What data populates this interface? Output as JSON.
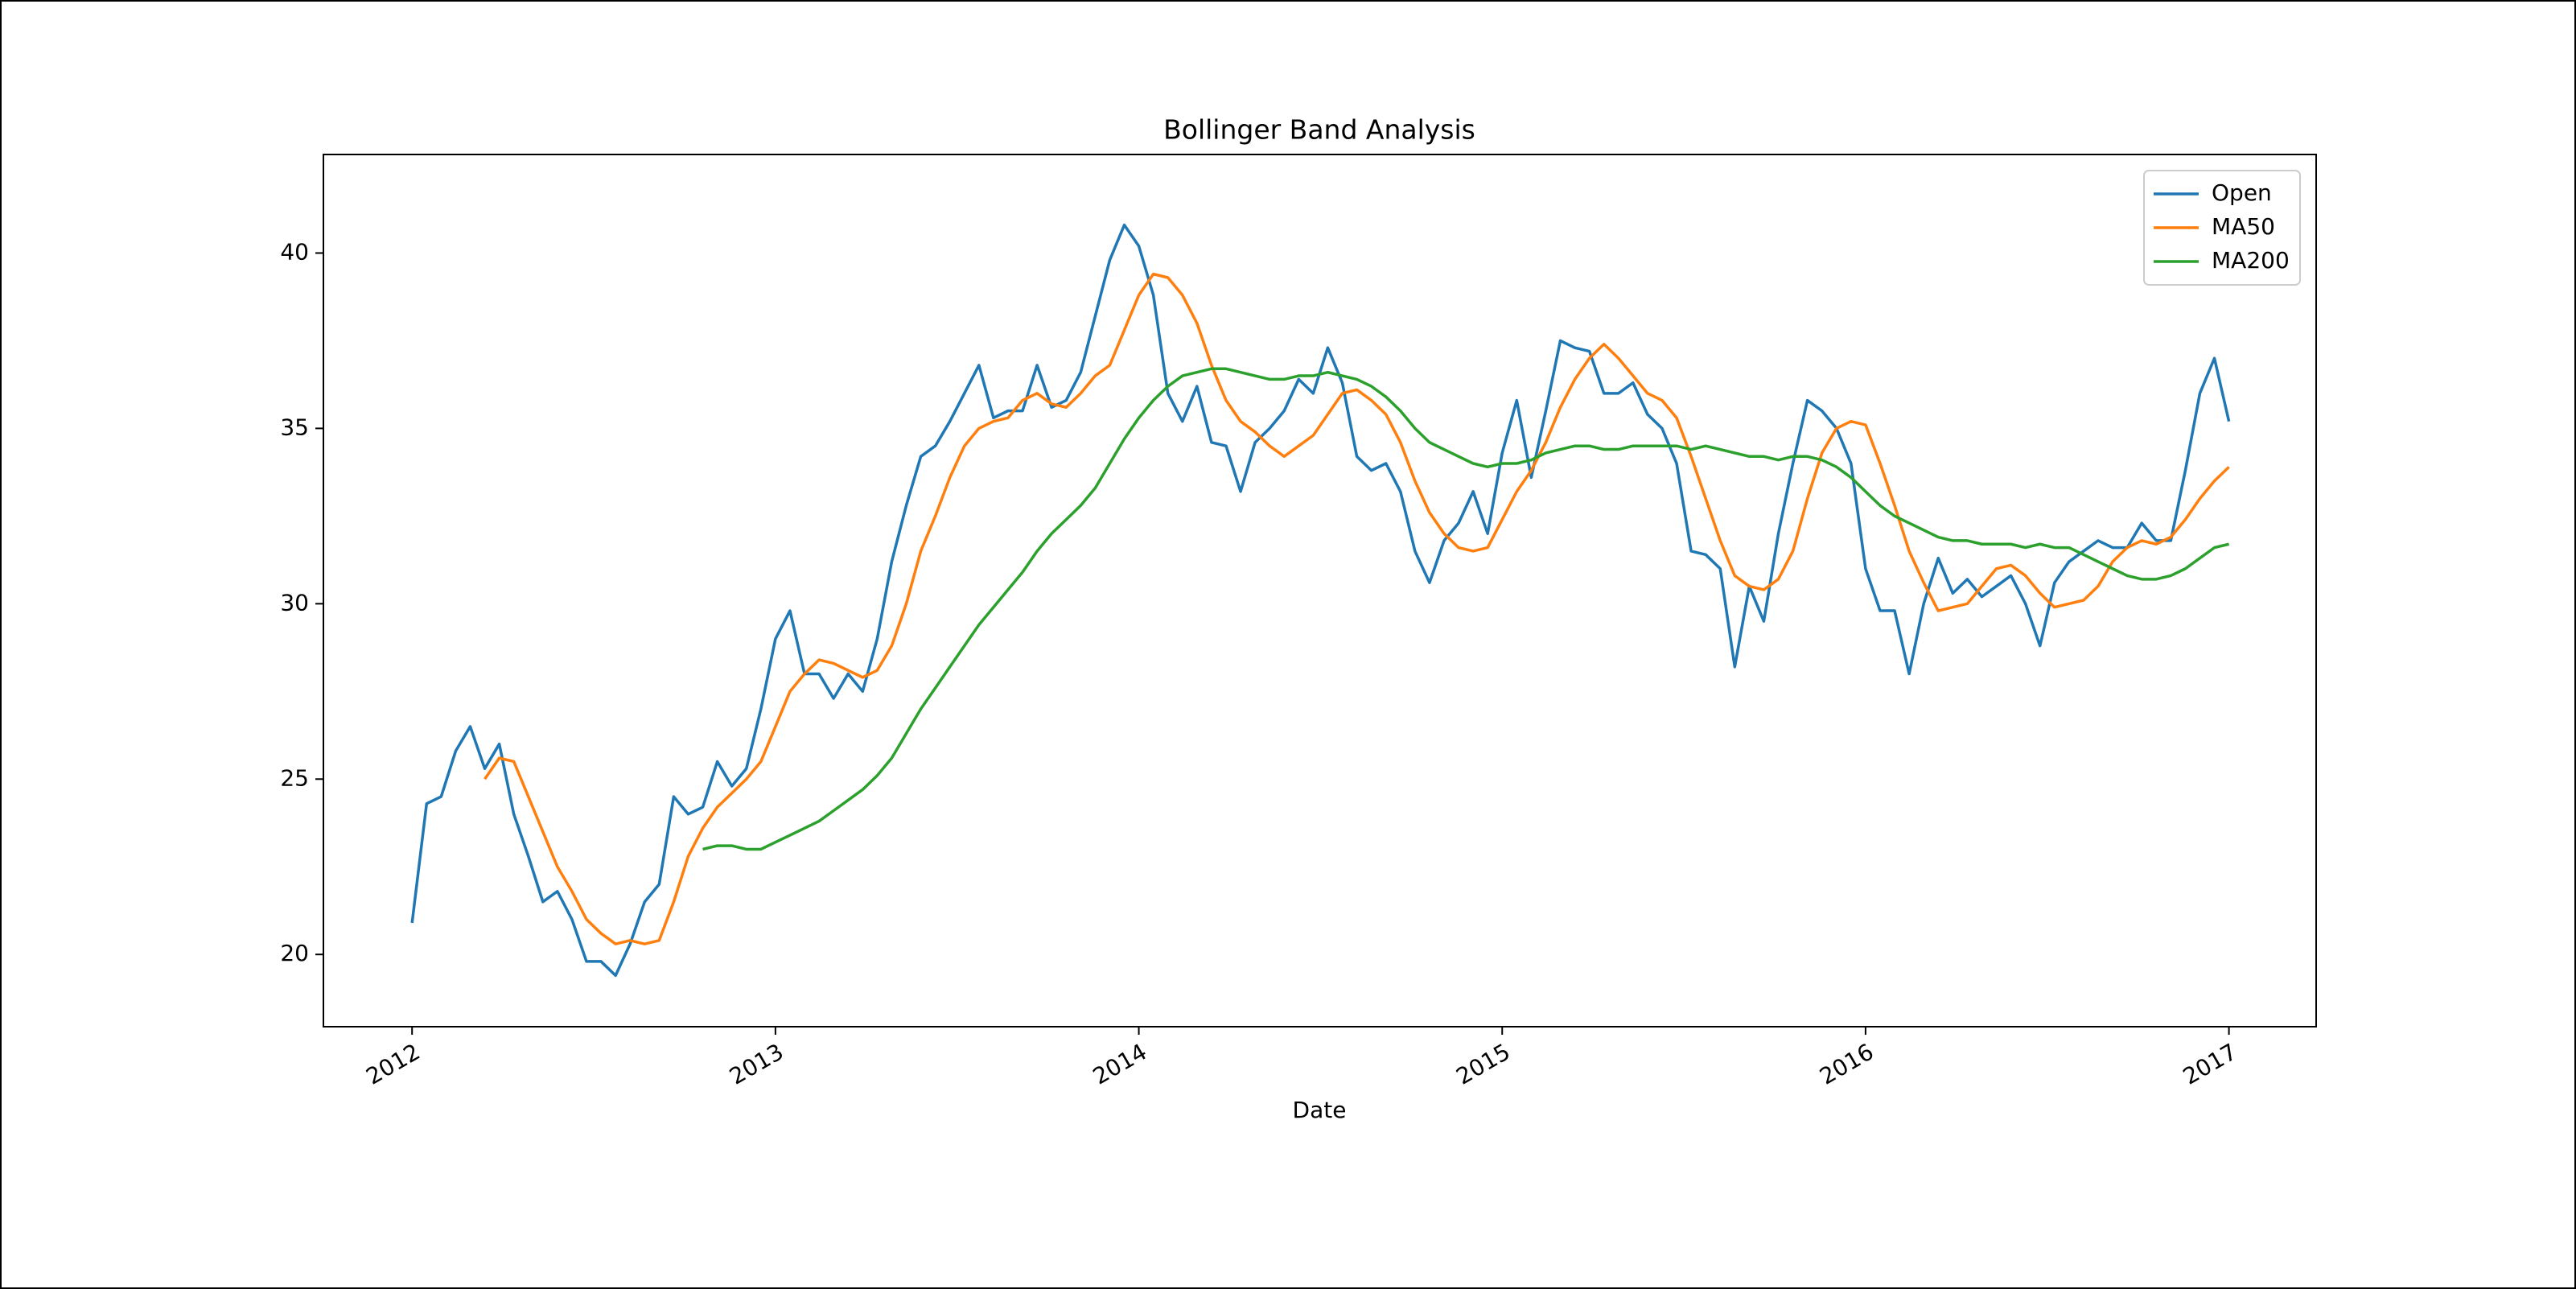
{
  "chart_data": {
    "type": "line",
    "title": "Bollinger Band Analysis",
    "x_label": "Date",
    "x": [
      2012,
      2012.04,
      2012.08,
      2012.12,
      2012.16,
      2012.2,
      2012.24,
      2012.28,
      2012.32,
      2012.36,
      2012.4,
      2012.44,
      2012.48,
      2012.52,
      2012.56,
      2012.6,
      2012.64,
      2012.68,
      2012.72,
      2012.76,
      2012.8,
      2012.84,
      2012.88,
      2012.92,
      2012.96,
      2013,
      2013.04,
      2013.08,
      2013.12,
      2013.16,
      2013.2,
      2013.24,
      2013.28,
      2013.32,
      2013.36,
      2013.4,
      2013.44,
      2013.48,
      2013.52,
      2013.56,
      2013.6,
      2013.64,
      2013.68,
      2013.72,
      2013.76,
      2013.8,
      2013.84,
      2013.88,
      2013.92,
      2013.96,
      2014,
      2014.04,
      2014.08,
      2014.12,
      2014.16,
      2014.2,
      2014.24,
      2014.28,
      2014.32,
      2014.36,
      2014.4,
      2014.44,
      2014.48,
      2014.52,
      2014.56,
      2014.6,
      2014.64,
      2014.68,
      2014.72,
      2014.76,
      2014.8,
      2014.84,
      2014.88,
      2014.92,
      2014.96,
      2015,
      2015.04,
      2015.08,
      2015.12,
      2015.16,
      2015.2,
      2015.24,
      2015.28,
      2015.32,
      2015.36,
      2015.4,
      2015.44,
      2015.48,
      2015.52,
      2015.56,
      2015.6,
      2015.64,
      2015.68,
      2015.72,
      2015.76,
      2015.8,
      2015.84,
      2015.88,
      2015.92,
      2015.96,
      2016,
      2016.04,
      2016.08,
      2016.12,
      2016.16,
      2016.2,
      2016.24,
      2016.28,
      2016.32,
      2016.36,
      2016.4,
      2016.44,
      2016.48,
      2016.52,
      2016.56,
      2016.6,
      2016.64,
      2016.68,
      2016.72,
      2016.76,
      2016.8,
      2016.84,
      2016.88,
      2016.92,
      2016.96,
      2017
    ],
    "series": [
      {
        "name": "Open",
        "color": "#1f77b4",
        "values": [
          20.9,
          24.3,
          24.5,
          25.8,
          26.5,
          25.3,
          26.0,
          24.0,
          22.8,
          21.5,
          21.8,
          21.0,
          19.8,
          19.8,
          19.4,
          20.3,
          21.5,
          22.0,
          24.5,
          24.0,
          24.2,
          25.5,
          24.8,
          25.3,
          27.0,
          29.0,
          29.8,
          28.0,
          28.0,
          27.3,
          28.0,
          27.5,
          29.0,
          31.2,
          32.8,
          34.2,
          34.5,
          35.2,
          36.0,
          36.8,
          35.3,
          35.5,
          35.5,
          36.8,
          35.6,
          35.8,
          36.6,
          38.2,
          39.8,
          40.8,
          40.2,
          38.8,
          36.0,
          35.2,
          36.2,
          34.6,
          34.5,
          33.2,
          34.6,
          35.0,
          35.5,
          36.4,
          36.0,
          37.3,
          36.3,
          34.2,
          33.8,
          34.0,
          33.2,
          31.5,
          30.6,
          31.8,
          32.3,
          33.2,
          32.0,
          34.3,
          35.8,
          33.6,
          35.5,
          37.5,
          37.3,
          37.2,
          36.0,
          36.0,
          36.3,
          35.4,
          35.0,
          34.0,
          31.5,
          31.4,
          31.0,
          28.2,
          30.5,
          29.5,
          32.0,
          34.0,
          35.8,
          35.5,
          35.0,
          34.0,
          31.0,
          29.8,
          29.8,
          28.0,
          30.0,
          31.3,
          30.3,
          30.7,
          30.2,
          30.5,
          30.8,
          30.0,
          28.8,
          30.6,
          31.2,
          31.5,
          31.8,
          31.6,
          31.6,
          32.3,
          31.8,
          31.8,
          33.8,
          36.0,
          37.0,
          35.2
        ]
      },
      {
        "name": "MA50",
        "color": "#ff7f0e",
        "values": [
          null,
          null,
          null,
          null,
          null,
          25.0,
          25.6,
          25.5,
          24.5,
          23.5,
          22.5,
          21.8,
          21.0,
          20.6,
          20.3,
          20.4,
          20.3,
          20.4,
          21.5,
          22.8,
          23.6,
          24.2,
          24.6,
          25.0,
          25.5,
          26.5,
          27.5,
          28.0,
          28.4,
          28.3,
          28.1,
          27.9,
          28.1,
          28.8,
          30.0,
          31.5,
          32.5,
          33.6,
          34.5,
          35.0,
          35.2,
          35.3,
          35.8,
          36.0,
          35.7,
          35.6,
          36.0,
          36.5,
          36.8,
          37.8,
          38.8,
          39.4,
          39.3,
          38.8,
          38.0,
          36.8,
          35.8,
          35.2,
          34.9,
          34.5,
          34.2,
          34.5,
          34.8,
          35.4,
          36.0,
          36.1,
          35.8,
          35.4,
          34.6,
          33.5,
          32.6,
          32.0,
          31.6,
          31.5,
          31.6,
          32.4,
          33.2,
          33.8,
          34.6,
          35.6,
          36.4,
          37.0,
          37.4,
          37.0,
          36.5,
          36.0,
          35.8,
          35.3,
          34.2,
          33.0,
          31.8,
          30.8,
          30.5,
          30.4,
          30.7,
          31.5,
          33.0,
          34.3,
          35.0,
          35.2,
          35.1,
          34.0,
          32.8,
          31.5,
          30.6,
          29.8,
          29.9,
          30.0,
          30.5,
          31.0,
          31.1,
          30.8,
          30.3,
          29.9,
          30.0,
          30.1,
          30.5,
          31.2,
          31.6,
          31.8,
          31.7,
          31.9,
          32.4,
          33.0,
          33.5,
          33.9
        ]
      },
      {
        "name": "MA200",
        "color": "#2ca02c",
        "values": [
          null,
          null,
          null,
          null,
          null,
          null,
          null,
          null,
          null,
          null,
          null,
          null,
          null,
          null,
          null,
          null,
          null,
          null,
          null,
          null,
          23.0,
          23.1,
          23.1,
          23.0,
          23.0,
          23.2,
          23.4,
          23.6,
          23.8,
          24.1,
          24.4,
          24.7,
          25.1,
          25.6,
          26.3,
          27.0,
          27.6,
          28.2,
          28.8,
          29.4,
          29.9,
          30.4,
          30.9,
          31.5,
          32.0,
          32.4,
          32.8,
          33.3,
          34.0,
          34.7,
          35.3,
          35.8,
          36.2,
          36.5,
          36.6,
          36.7,
          36.7,
          36.6,
          36.5,
          36.4,
          36.4,
          36.5,
          36.5,
          36.6,
          36.5,
          36.4,
          36.2,
          35.9,
          35.5,
          35.0,
          34.6,
          34.4,
          34.2,
          34.0,
          33.9,
          34.0,
          34.0,
          34.1,
          34.3,
          34.4,
          34.5,
          34.5,
          34.4,
          34.4,
          34.5,
          34.5,
          34.5,
          34.5,
          34.4,
          34.5,
          34.4,
          34.3,
          34.2,
          34.2,
          34.1,
          34.2,
          34.2,
          34.1,
          33.9,
          33.6,
          33.2,
          32.8,
          32.5,
          32.3,
          32.1,
          31.9,
          31.8,
          31.8,
          31.7,
          31.7,
          31.7,
          31.6,
          31.7,
          31.6,
          31.6,
          31.4,
          31.2,
          31.0,
          30.8,
          30.7,
          30.7,
          30.8,
          31.0,
          31.3,
          31.6,
          31.7
        ]
      }
    ],
    "xlim": [
      2011.756,
      2017.24
    ],
    "xticks": [
      2012,
      2013,
      2014,
      2015,
      2016,
      2017
    ],
    "ylim": [
      17.94,
      42.81
    ],
    "yticks": [
      20,
      25,
      30,
      35,
      40
    ],
    "grid": false,
    "legend": "upper right"
  }
}
